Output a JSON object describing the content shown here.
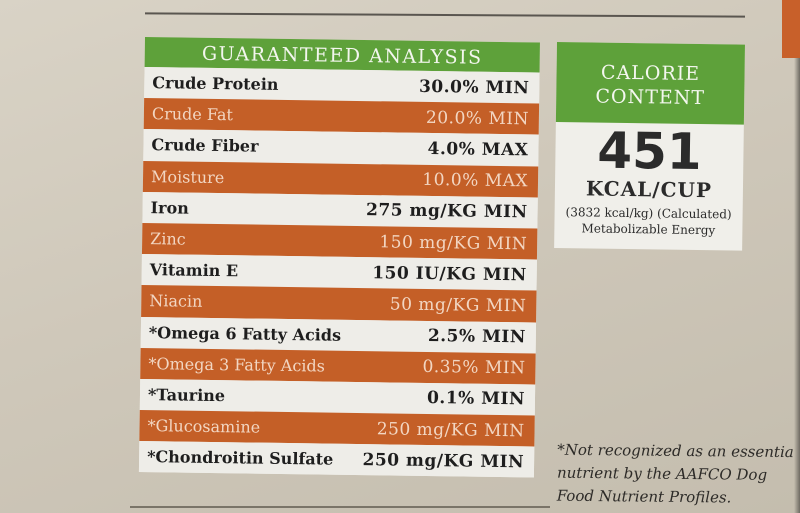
{
  "guaranteed_analysis": {
    "title": "GUARANTEED ANALYSIS",
    "rows": [
      {
        "name": "Crude Protein",
        "value": "30.0% MIN",
        "style": "light"
      },
      {
        "name": "Crude Fat",
        "value": "20.0% MIN",
        "style": "orange"
      },
      {
        "name": "Crude Fiber",
        "value": "4.0% MAX",
        "style": "light"
      },
      {
        "name": "Moisture",
        "value": "10.0% MAX",
        "style": "orange"
      },
      {
        "name": "Iron",
        "value": "275 mg/KG MIN",
        "style": "light"
      },
      {
        "name": "Zinc",
        "value": "150 mg/KG MIN",
        "style": "orange"
      },
      {
        "name": "Vitamin E",
        "value": "150 IU/KG MIN",
        "style": "light"
      },
      {
        "name": "Niacin",
        "value": "50 mg/KG MIN",
        "style": "orange"
      },
      {
        "name": "*Omega 6 Fatty Acids",
        "value": "2.5% MIN",
        "style": "light"
      },
      {
        "name": "*Omega 3 Fatty Acids",
        "value": "0.35% MIN",
        "style": "orange"
      },
      {
        "name": "*Taurine",
        "value": "0.1% MIN",
        "style": "light"
      },
      {
        "name": "*Glucosamine",
        "value": "250 mg/KG MIN",
        "style": "orange"
      },
      {
        "name": "*Chondroitin Sulfate",
        "value": "250 mg/KG MIN",
        "style": "light"
      }
    ]
  },
  "calorie_content": {
    "title_line1": "CALORIE",
    "title_line2": "CONTENT",
    "value": "451",
    "unit": "KCAL/CUP",
    "detail": "(3832 kcal/kg) (Calculated)",
    "label": "Metabolizable Energy"
  },
  "footnote": {
    "line1": "*Not recognized as an essentia",
    "line2": "nutrient by the AAFCO Dog",
    "line3": "Food Nutrient Profiles."
  },
  "colors": {
    "green": "#5ea13a",
    "orange": "#c45f27"
  }
}
